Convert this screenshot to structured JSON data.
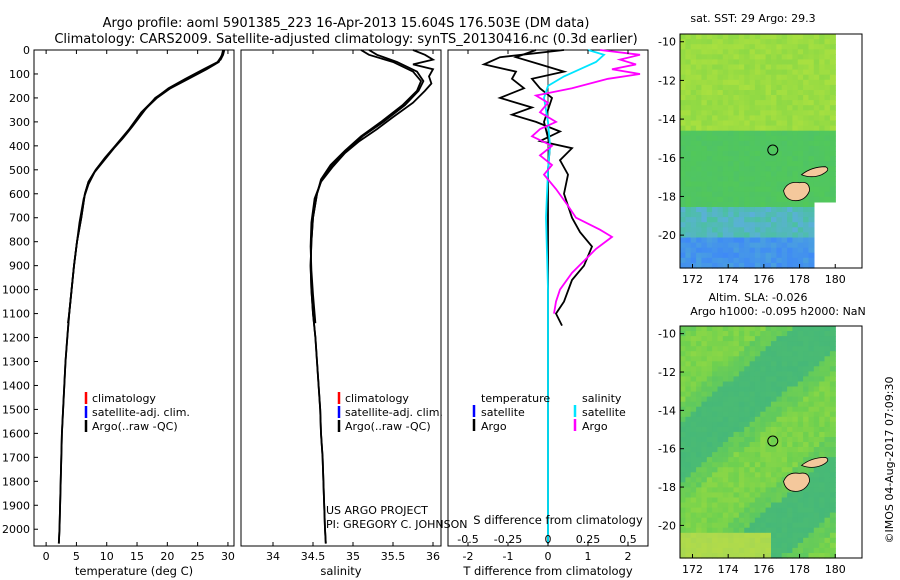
{
  "title": {
    "line1": "Argo profile: aoml 5901385_223 16-Apr-2013 15.604S 176.503E (DM data)",
    "line2": "Climatology: CARS2009. Satellite-adjusted climatology: synTS_20130416.nc (0.3d earlier)"
  },
  "colors": {
    "climatology": "#ff0000",
    "satellite": "#0000ff",
    "argo": "#000000",
    "sal_satellite": "#00e5ff",
    "sal_argo": "#ff00ff",
    "land": "#f4c89c"
  },
  "legend": {
    "clim": "climatology",
    "sat": "satellite-adj. clim.",
    "argo": "Argo(..raw -QC)"
  },
  "diff_legend": {
    "temp_head": "temperature",
    "sal_head": "salinity",
    "satellite": "satellite",
    "argo": "Argo"
  },
  "credits": {
    "project": "US ARGO PROJECT",
    "pi": "PI: GREGORY C. JOHNSON"
  },
  "maps": {
    "sst_title": "sat. SST: 29 Argo: 29.3",
    "sla_title1": "Altim. SLA: -0.026",
    "sla_title2": "Argo h1000: -0.095 h2000: NaN",
    "x_ticks": [
      "172",
      "174",
      "176",
      "178",
      "180"
    ],
    "y_ticks": [
      "-10",
      "-12",
      "-14",
      "-16",
      "-18",
      "-20"
    ],
    "stamp": "©IMOS 04-Aug-2017 07:09:30"
  },
  "chart_data": [
    {
      "type": "line",
      "xlabel": "temperature (deg C)",
      "xlim": [
        -2,
        31
      ],
      "ylim": [
        2070,
        0
      ],
      "x_ticks": [
        "0",
        "5",
        "10",
        "15",
        "20",
        "25",
        "30"
      ],
      "y_ticks": [
        "0",
        "100",
        "200",
        "300",
        "400",
        "500",
        "600",
        "700",
        "800",
        "900",
        "1000",
        "1100",
        "1200",
        "1300",
        "1400",
        "1500",
        "1600",
        "1700",
        "1800",
        "1900",
        "2000"
      ],
      "series": [
        {
          "name": "climatology",
          "key": "clim",
          "points": [
            [
              29.2,
              0
            ],
            [
              29,
              20
            ],
            [
              28.5,
              50
            ],
            [
              26.5,
              80
            ],
            [
              23.5,
              120
            ],
            [
              20.5,
              160
            ],
            [
              18.3,
              200
            ],
            [
              15.8,
              260
            ],
            [
              13.8,
              330
            ],
            [
              11.5,
              400
            ],
            [
              9.8,
              450
            ],
            [
              8.2,
              500
            ],
            [
              7,
              550
            ],
            [
              6.4,
              600
            ],
            [
              5.8,
              700
            ],
            [
              5.1,
              800
            ],
            [
              4.6,
              900
            ],
            [
              4.2,
              1000
            ],
            [
              3.8,
              1100
            ],
            [
              3.5,
              1200
            ],
            [
              3.2,
              1300
            ],
            [
              3,
              1400
            ],
            [
              2.8,
              1500
            ],
            [
              2.6,
              1600
            ],
            [
              2.5,
              1700
            ],
            [
              2.4,
              1800
            ],
            [
              2.3,
              1900
            ],
            [
              2.2,
              2000
            ],
            [
              2.1,
              2060
            ]
          ]
        },
        {
          "name": "satellite-adj. clim.",
          "key": "sat",
          "points": [
            [
              29.3,
              0
            ],
            [
              29.1,
              20
            ],
            [
              28.3,
              50
            ],
            [
              26,
              80
            ],
            [
              23,
              120
            ],
            [
              20.2,
              160
            ],
            [
              18.1,
              200
            ],
            [
              15.7,
              260
            ],
            [
              13.7,
              330
            ],
            [
              11.4,
              400
            ],
            [
              9.7,
              450
            ],
            [
              8.2,
              500
            ],
            [
              7,
              550
            ],
            [
              6.4,
              600
            ],
            [
              5.8,
              700
            ],
            [
              5.1,
              800
            ],
            [
              4.6,
              900
            ],
            [
              4.2,
              1000
            ],
            [
              3.8,
              1100
            ],
            [
              3.5,
              1200
            ],
            [
              3.2,
              1300
            ],
            [
              3,
              1400
            ],
            [
              2.8,
              1500
            ],
            [
              2.6,
              1600
            ],
            [
              2.5,
              1700
            ],
            [
              2.4,
              1800
            ],
            [
              2.3,
              1900
            ],
            [
              2.2,
              2000
            ],
            [
              2.1,
              2060
            ]
          ]
        },
        {
          "name": "Argo(..raw -QC)",
          "key": "argo",
          "points": [
            [
              29.4,
              0
            ],
            [
              29.2,
              20
            ],
            [
              28.8,
              40
            ],
            [
              27.8,
              60
            ],
            [
              25.5,
              90
            ],
            [
              22.5,
              130
            ],
            [
              19.8,
              170
            ],
            [
              18,
              200
            ],
            [
              16.3,
              250
            ],
            [
              14.2,
              320
            ],
            [
              12.6,
              370
            ],
            [
              11.2,
              410
            ],
            [
              9.6,
              460
            ],
            [
              8,
              510
            ],
            [
              7,
              560
            ],
            [
              6.2,
              620
            ],
            [
              5.5,
              720
            ],
            [
              5,
              820
            ],
            [
              4.6,
              900
            ],
            [
              4.2,
              1000
            ],
            [
              3.8,
              1100
            ],
            [
              3.6,
              1140
            ]
          ]
        }
      ]
    },
    {
      "type": "line",
      "xlabel": "salinity",
      "xlim": [
        33.6,
        36.1
      ],
      "ylim": [
        2070,
        0
      ],
      "x_ticks": [
        "34",
        "34.5",
        "35",
        "35.5",
        "36"
      ],
      "series": [
        {
          "name": "climatology",
          "key": "clim",
          "points": [
            [
              35.1,
              0
            ],
            [
              35.2,
              20
            ],
            [
              35.5,
              50
            ],
            [
              35.75,
              90
            ],
            [
              35.85,
              130
            ],
            [
              35.8,
              170
            ],
            [
              35.62,
              230
            ],
            [
              35.35,
              300
            ],
            [
              35.1,
              360
            ],
            [
              34.9,
              420
            ],
            [
              34.72,
              480
            ],
            [
              34.6,
              540
            ],
            [
              34.55,
              600
            ],
            [
              34.5,
              700
            ],
            [
              34.48,
              800
            ],
            [
              34.47,
              900
            ],
            [
              34.48,
              1000
            ],
            [
              34.5,
              1100
            ],
            [
              34.53,
              1200
            ],
            [
              34.55,
              1300
            ],
            [
              34.57,
              1400
            ],
            [
              34.59,
              1500
            ],
            [
              34.6,
              1600
            ],
            [
              34.62,
              1700
            ],
            [
              34.63,
              1800
            ],
            [
              34.64,
              1900
            ],
            [
              34.65,
              2000
            ],
            [
              34.66,
              2060
            ]
          ]
        },
        {
          "name": "satellite-adj. clim.",
          "key": "sat",
          "points": [
            [
              35.2,
              0
            ],
            [
              35.3,
              20
            ],
            [
              35.55,
              50
            ],
            [
              35.8,
              90
            ],
            [
              35.88,
              130
            ],
            [
              35.82,
              170
            ],
            [
              35.65,
              230
            ],
            [
              35.38,
              300
            ],
            [
              35.12,
              360
            ],
            [
              34.92,
              420
            ],
            [
              34.74,
              480
            ],
            [
              34.61,
              540
            ],
            [
              34.55,
              600
            ],
            [
              34.5,
              700
            ],
            [
              34.48,
              800
            ],
            [
              34.47,
              900
            ],
            [
              34.48,
              1000
            ],
            [
              34.5,
              1100
            ],
            [
              34.53,
              1200
            ],
            [
              34.55,
              1300
            ],
            [
              34.57,
              1400
            ],
            [
              34.59,
              1500
            ],
            [
              34.6,
              1600
            ],
            [
              34.62,
              1700
            ],
            [
              34.63,
              1800
            ],
            [
              34.64,
              1900
            ],
            [
              34.65,
              2000
            ],
            [
              34.66,
              2060
            ]
          ]
        },
        {
          "name": "Argo(..raw -QC)",
          "key": "argo",
          "points": [
            [
              35.75,
              0
            ],
            [
              35.9,
              20
            ],
            [
              36,
              40
            ],
            [
              35.75,
              60
            ],
            [
              36,
              80
            ],
            [
              35.95,
              110
            ],
            [
              35.98,
              140
            ],
            [
              35.9,
              170
            ],
            [
              35.75,
              220
            ],
            [
              35.5,
              280
            ],
            [
              35.3,
              330
            ],
            [
              35.08,
              380
            ],
            [
              34.9,
              430
            ],
            [
              34.74,
              490
            ],
            [
              34.6,
              550
            ],
            [
              34.52,
              620
            ],
            [
              34.48,
              720
            ],
            [
              34.47,
              820
            ],
            [
              34.48,
              920
            ],
            [
              34.5,
              1020
            ],
            [
              34.52,
              1100
            ],
            [
              34.53,
              1140
            ]
          ]
        }
      ]
    },
    {
      "type": "line",
      "xlabel": "T difference from climatology",
      "xlabel_top": "S difference from climatology",
      "xlim": [
        -2.5,
        2.5
      ],
      "ylim": [
        2070,
        0
      ],
      "x_ticks": [
        "-2",
        "-1",
        "0",
        "1",
        "2"
      ],
      "x_ticks_top": [
        "-0.5",
        "-0.25",
        "0",
        "0.25",
        "0.5"
      ],
      "series": [
        {
          "name": "temperature satellite",
          "key": "sat",
          "points": [
            [
              -0.3,
              0
            ],
            [
              -0.8,
              30
            ],
            [
              -0.2,
              60
            ],
            [
              0.4,
              90
            ],
            [
              -0.4,
              120
            ],
            [
              -0.2,
              160
            ],
            [
              0.1,
              200
            ],
            [
              -0.1,
              300
            ],
            [
              0.05,
              400
            ],
            [
              0,
              500
            ],
            [
              0,
              700
            ],
            [
              0,
              1000
            ],
            [
              0,
              1500
            ],
            [
              0,
              2060
            ]
          ]
        },
        {
          "name": "temperature Argo",
          "key": "argo",
          "points": [
            [
              0.4,
              0
            ],
            [
              -1.2,
              30
            ],
            [
              -1.6,
              60
            ],
            [
              -0.8,
              90
            ],
            [
              -0.9,
              120
            ],
            [
              -0.6,
              160
            ],
            [
              -1.2,
              200
            ],
            [
              -0.4,
              240
            ],
            [
              -0.9,
              270
            ],
            [
              -0.3,
              300
            ],
            [
              0.3,
              340
            ],
            [
              -0.2,
              380
            ],
            [
              0.6,
              410
            ],
            [
              0.3,
              460
            ],
            [
              0.5,
              520
            ],
            [
              0.4,
              600
            ],
            [
              0.6,
              700
            ],
            [
              0.8,
              760
            ],
            [
              1.1,
              820
            ],
            [
              0.9,
              900
            ],
            [
              0.6,
              960
            ],
            [
              0.4,
              1050
            ],
            [
              0.2,
              1100
            ],
            [
              0.35,
              1150
            ]
          ]
        },
        {
          "name": "salinity satellite",
          "key": "sal_satellite",
          "points": [
            [
              1,
              0
            ],
            [
              1.4,
              20
            ],
            [
              1.2,
              50
            ],
            [
              0.8,
              80
            ],
            [
              0.4,
              110
            ],
            [
              0,
              150
            ],
            [
              -0.1,
              200
            ],
            [
              0,
              300
            ],
            [
              0.05,
              400
            ],
            [
              0,
              500
            ],
            [
              -0.05,
              700
            ],
            [
              0,
              1000
            ],
            [
              0,
              1500
            ],
            [
              0,
              2060
            ]
          ]
        },
        {
          "name": "salinity Argo",
          "key": "sal_argo",
          "points": [
            [
              1.3,
              0
            ],
            [
              2.3,
              20
            ],
            [
              1.8,
              40
            ],
            [
              2.2,
              60
            ],
            [
              1.6,
              80
            ],
            [
              2.3,
              100
            ],
            [
              1.5,
              120
            ],
            [
              0.6,
              160
            ],
            [
              -0.3,
              190
            ],
            [
              0,
              220
            ],
            [
              -0.2,
              260
            ],
            [
              0.2,
              300
            ],
            [
              -0.2,
              330
            ],
            [
              -0.4,
              360
            ],
            [
              0.1,
              400
            ],
            [
              -0.2,
              440
            ],
            [
              0.1,
              480
            ],
            [
              -0.1,
              520
            ],
            [
              0.2,
              580
            ],
            [
              0.5,
              650
            ],
            [
              0.7,
              700
            ],
            [
              1.3,
              750
            ],
            [
              1.6,
              780
            ],
            [
              1.2,
              830
            ],
            [
              0.9,
              880
            ],
            [
              0.6,
              930
            ],
            [
              0.3,
              1000
            ],
            [
              0.2,
              1050
            ],
            [
              0.15,
              1100
            ]
          ]
        }
      ]
    }
  ]
}
